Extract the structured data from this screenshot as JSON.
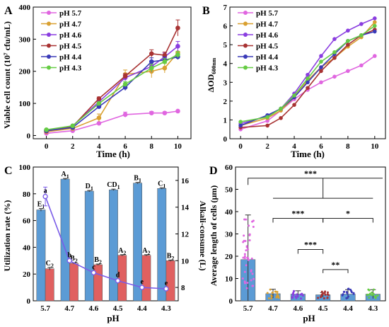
{
  "colors": {
    "p57": "#e066e0",
    "p47": "#d9a030",
    "p46": "#8a3de0",
    "p45": "#a83232",
    "p44": "#3a3ab8",
    "p43": "#66cc44",
    "bar_blue": "#5b9bd5",
    "bar_red": "#e06060",
    "line_purple": "#7a5ce8",
    "sig": "#222222"
  },
  "chart_data": [
    {
      "panel": "A",
      "type": "line",
      "xlabel": "Time (h)",
      "ylabel": "Viable cell count (10⁷ cfu/mL)",
      "xlim": [
        -1,
        11
      ],
      "ylim": [
        -10,
        400
      ],
      "xticks": [
        0,
        2,
        4,
        6,
        8,
        10
      ],
      "yticks": [
        0,
        100,
        200,
        300,
        400
      ],
      "x": [
        0,
        2,
        4,
        6,
        8,
        9,
        10
      ],
      "legend_position": "top-left",
      "series": [
        {
          "name": "pH 5.7",
          "color": "p57",
          "marker": "circle",
          "values": [
            7,
            15,
            38,
            65,
            70,
            70,
            76
          ],
          "err": [
            0,
            0,
            3,
            8,
            5,
            4,
            0
          ]
        },
        {
          "name": "pH 4.7",
          "color": "p47",
          "marker": "circle",
          "values": [
            12,
            22,
            55,
            190,
            200,
            210,
            258
          ],
          "err": [
            0,
            0,
            12,
            14,
            20,
            15,
            0
          ]
        },
        {
          "name": "pH 4.6",
          "color": "p46",
          "marker": "circle",
          "values": [
            17,
            30,
            105,
            180,
            215,
            245,
            278
          ],
          "err": [
            0,
            0,
            5,
            10,
            18,
            12,
            15
          ]
        },
        {
          "name": "pH 4.5",
          "color": "p45",
          "marker": "circle",
          "values": [
            14,
            28,
            115,
            185,
            255,
            250,
            335
          ],
          "err": [
            0,
            0,
            5,
            8,
            12,
            10,
            25
          ]
        },
        {
          "name": "pH 4.4",
          "color": "p44",
          "marker": "circle",
          "values": [
            15,
            25,
            90,
            150,
            230,
            235,
            245
          ],
          "err": [
            0,
            0,
            5,
            10,
            12,
            10,
            8
          ]
        },
        {
          "name": "pH 4.3",
          "color": "p43",
          "marker": "circle",
          "values": [
            18,
            30,
            100,
            160,
            210,
            230,
            252
          ],
          "err": [
            0,
            0,
            4,
            8,
            12,
            10,
            10
          ]
        }
      ]
    },
    {
      "panel": "B",
      "type": "line",
      "xlabel": "Time (h)",
      "ylabel": "ΔOD600nm",
      "xlim": [
        -0.8,
        10.8
      ],
      "ylim": [
        0,
        7
      ],
      "xticks": [
        0,
        2,
        4,
        6,
        8,
        10
      ],
      "yticks": [
        0,
        1,
        2,
        3,
        4,
        5,
        6,
        7
      ],
      "x": [
        0,
        2,
        3,
        4,
        5,
        6,
        7,
        8,
        9,
        10
      ],
      "legend_position": "top-left",
      "series": [
        {
          "name": "pH 5.7",
          "color": "p57",
          "values": [
            0.5,
            0.95,
            1.5,
            2.1,
            2.6,
            3.0,
            3.3,
            3.6,
            3.9,
            4.4
          ]
        },
        {
          "name": "pH 4.7",
          "color": "p47",
          "values": [
            0.7,
            1.1,
            1.5,
            2.2,
            3.1,
            3.8,
            4.3,
            4.9,
            5.4,
            6.2
          ]
        },
        {
          "name": "pH 4.6",
          "color": "p46",
          "values": [
            0.8,
            1.2,
            1.6,
            2.4,
            3.4,
            4.4,
            5.3,
            5.75,
            6.1,
            6.4
          ]
        },
        {
          "name": "pH 4.5",
          "color": "p45",
          "values": [
            0.6,
            0.7,
            1.1,
            1.8,
            2.7,
            3.6,
            4.3,
            5.0,
            5.5,
            5.8
          ]
        },
        {
          "name": "pH 4.4",
          "color": "p44",
          "values": [
            0.7,
            1.25,
            1.6,
            2.2,
            3.0,
            3.8,
            4.5,
            5.2,
            5.5,
            5.7
          ]
        },
        {
          "name": "pH 4.3",
          "color": "p43",
          "values": [
            0.9,
            1.15,
            1.6,
            2.3,
            3.2,
            4.1,
            4.6,
            5.2,
            5.5,
            6.0
          ]
        }
      ]
    },
    {
      "panel": "C",
      "type": "bar",
      "xlabel": "pH",
      "ylabel": "Utilization rate (%)",
      "y2label": "Alkali-consume (L)",
      "categories": [
        "5.7",
        "4.7",
        "4.6",
        "4.5",
        "4.4",
        "4.3"
      ],
      "ylim": [
        0,
        100
      ],
      "yticks": [
        0,
        20,
        40,
        60,
        80,
        100
      ],
      "y2lim": [
        7,
        17
      ],
      "y2ticks": [
        8,
        10,
        12,
        14,
        16
      ],
      "series": [
        {
          "color": "bar_blue",
          "values": [
            68,
            91,
            82,
            83,
            88,
            84
          ],
          "err": [
            1,
            0.5,
            0.5,
            0.5,
            0.5,
            0.5
          ],
          "letters": [
            "E1",
            "A1",
            "D1",
            "CD1",
            "B1",
            "C1"
          ]
        },
        {
          "color": "bar_red",
          "values": [
            24,
            28,
            27,
            34,
            34,
            30
          ],
          "err": [
            1,
            0.5,
            0.5,
            0.5,
            0.5,
            0.5
          ],
          "letters": [
            "C2",
            "B2",
            "B2",
            "A2",
            "A2",
            "B2"
          ]
        }
      ],
      "line": {
        "color": "line_purple",
        "values": [
          14.8,
          10,
          9.1,
          8.5,
          8,
          7.9
        ],
        "err": [
          0.7,
          0.1,
          0.1,
          0.1,
          0.1,
          0.1
        ],
        "letters": [
          "a",
          "b",
          "c",
          "d",
          "e",
          "e"
        ]
      }
    },
    {
      "panel": "D",
      "type": "bar",
      "xlabel": "pH",
      "ylabel": "Average length of cells (μm)",
      "categories": [
        "5.7",
        "4.7",
        "4.6",
        "4.5",
        "4.4",
        "4.3"
      ],
      "ylim": [
        0,
        60
      ],
      "yticks": [
        0,
        10,
        20,
        30,
        40,
        50,
        60
      ],
      "values": [
        18.5,
        3.2,
        3.0,
        2.7,
        3.0,
        3.0
      ],
      "err": [
        20,
        2,
        1.5,
        1,
        2,
        2
      ],
      "point_colors": [
        "p57",
        "p47",
        "p46",
        "p45",
        "p44",
        "p43"
      ],
      "significance": [
        {
          "label": "***"
        },
        {
          "label": "***"
        },
        {
          "label": "*"
        },
        {
          "label": "***"
        },
        {
          "label": "**"
        }
      ]
    }
  ]
}
